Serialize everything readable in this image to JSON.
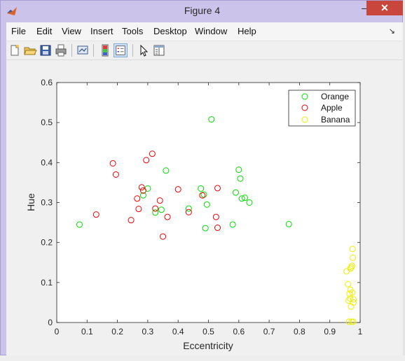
{
  "window": {
    "title": "Figure 4"
  },
  "titlebar_buttons": {
    "minimize": "–",
    "close": "✕"
  },
  "menu": [
    "File",
    "Edit",
    "View",
    "Insert",
    "Tools",
    "Desktop",
    "Window",
    "Help"
  ],
  "menu_corner": "↘",
  "toolbar": [
    "new-figure-icon",
    "open-file-icon",
    "save-icon",
    "print-icon",
    "link-icon",
    "colorbar-icon",
    "legend-icon",
    "pointer-icon",
    "property-editor-icon"
  ],
  "colors": {
    "orange": "#00dd00",
    "apple": "#ee0000",
    "banana": "#eeee00",
    "close_button": "#c9463d"
  },
  "chart_data": {
    "type": "scatter",
    "xlabel": "Eccentricity",
    "ylabel": "Hue",
    "xlim": [
      0,
      1
    ],
    "ylim": [
      0,
      0.6
    ],
    "xticks": [
      0,
      0.1,
      0.2,
      0.3,
      0.4,
      0.5,
      0.6,
      0.7,
      0.8,
      0.9,
      1
    ],
    "yticks": [
      0,
      0.1,
      0.2,
      0.3,
      0.4,
      0.5,
      0.6
    ],
    "grid": false,
    "legend": "top-right",
    "series": [
      {
        "name": "Orange",
        "color": "#00dd00",
        "points": [
          [
            0.075,
            0.245
          ],
          [
            0.285,
            0.318
          ],
          [
            0.3,
            0.335
          ],
          [
            0.325,
            0.275
          ],
          [
            0.345,
            0.282
          ],
          [
            0.36,
            0.38
          ],
          [
            0.435,
            0.285
          ],
          [
            0.475,
            0.335
          ],
          [
            0.485,
            0.32
          ],
          [
            0.49,
            0.236
          ],
          [
            0.495,
            0.295
          ],
          [
            0.51,
            0.508
          ],
          [
            0.58,
            0.245
          ],
          [
            0.59,
            0.325
          ],
          [
            0.6,
            0.382
          ],
          [
            0.605,
            0.36
          ],
          [
            0.61,
            0.31
          ],
          [
            0.62,
            0.312
          ],
          [
            0.635,
            0.3
          ],
          [
            0.765,
            0.246
          ]
        ]
      },
      {
        "name": "Apple",
        "color": "#ee0000",
        "points": [
          [
            0.13,
            0.27
          ],
          [
            0.185,
            0.398
          ],
          [
            0.195,
            0.37
          ],
          [
            0.245,
            0.256
          ],
          [
            0.265,
            0.31
          ],
          [
            0.27,
            0.284
          ],
          [
            0.28,
            0.338
          ],
          [
            0.285,
            0.33
          ],
          [
            0.295,
            0.406
          ],
          [
            0.315,
            0.422
          ],
          [
            0.325,
            0.285
          ],
          [
            0.34,
            0.305
          ],
          [
            0.35,
            0.215
          ],
          [
            0.365,
            0.264
          ],
          [
            0.4,
            0.333
          ],
          [
            0.435,
            0.276
          ],
          [
            0.48,
            0.318
          ],
          [
            0.525,
            0.264
          ],
          [
            0.53,
            0.336
          ],
          [
            0.53,
            0.237
          ]
        ]
      },
      {
        "name": "Banana",
        "color": "#eeee00",
        "points": [
          [
            0.955,
            0.128
          ],
          [
            0.96,
            0.096
          ],
          [
            0.962,
            0.055
          ],
          [
            0.963,
            0.002
          ],
          [
            0.965,
            0.072
          ],
          [
            0.967,
            0.06
          ],
          [
            0.968,
            0.082
          ],
          [
            0.97,
            0.04
          ],
          [
            0.971,
            0.138
          ],
          [
            0.972,
            0.002
          ],
          [
            0.973,
            0.142
          ],
          [
            0.974,
            0.075
          ],
          [
            0.975,
            0.184
          ],
          [
            0.976,
            0.162
          ],
          [
            0.977,
            0.002
          ],
          [
            0.978,
            0.05
          ],
          [
            0.978,
            0.058
          ],
          [
            0.968,
            0.135
          ]
        ]
      }
    ]
  }
}
